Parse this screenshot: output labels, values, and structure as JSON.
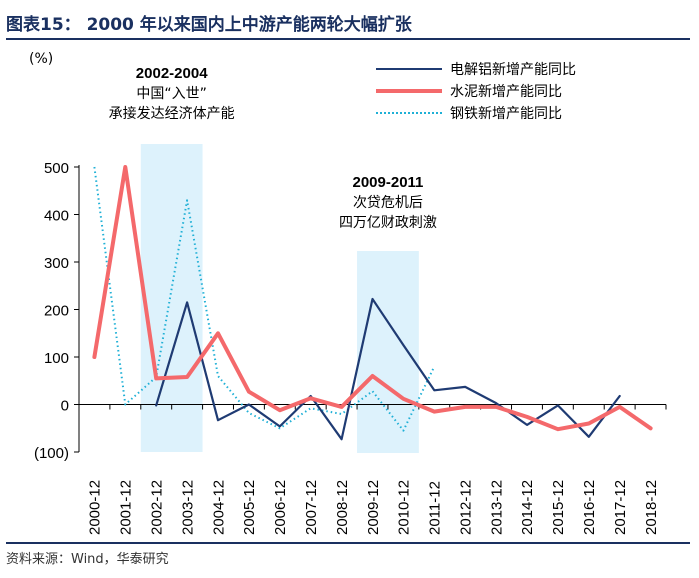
{
  "figure": {
    "title": "图表15：  2000 年以来国内上中游产能两轮大幅扩张",
    "source": "资料来源：Wind，华泰研究"
  },
  "chart_data": {
    "type": "line",
    "unit_label": "(%)",
    "categories": [
      "2000-12",
      "2001-12",
      "2002-12",
      "2003-12",
      "2004-12",
      "2005-12",
      "2006-12",
      "2007-12",
      "2008-12",
      "2009-12",
      "2010-12",
      "2011-12",
      "2012-12",
      "2013-12",
      "2014-12",
      "2015-12",
      "2016-12",
      "2017-12",
      "2018-12"
    ],
    "ylim": [
      -100,
      500
    ],
    "yticks": [
      500,
      400,
      300,
      200,
      100,
      0,
      -100
    ],
    "ytick_labels": [
      "500",
      "400",
      "300",
      "200",
      "100",
      "0",
      "(100)"
    ],
    "grid": false,
    "legend_position": "top-right",
    "series": [
      {
        "name": "电解铝新增产能同比",
        "color": "#1f3b73",
        "style": "solid",
        "values": [
          null,
          null,
          -2,
          215,
          -33,
          0,
          -46,
          18,
          -73,
          222,
          125,
          30,
          37,
          3,
          -43,
          -2,
          -68,
          18,
          null
        ]
      },
      {
        "name": "水泥新增产能同比",
        "color": "#f4696b",
        "style": "solid",
        "values": [
          100,
          500,
          55,
          58,
          150,
          27,
          -12,
          13,
          -5,
          60,
          12,
          -15,
          -5,
          -5,
          -26,
          -52,
          -40,
          -5,
          -50
        ]
      },
      {
        "name": "钢铁新增产能同比",
        "color": "#1fb0d6",
        "style": "dotted",
        "values": [
          500,
          0,
          58,
          430,
          60,
          -18,
          -50,
          -8,
          -20,
          28,
          -55,
          80,
          null,
          null,
          null,
          null,
          null,
          null,
          null
        ]
      }
    ],
    "shaded_periods": [
      {
        "range": "2002-2004",
        "from": 1.5,
        "to": 3.5,
        "color": "#ddf2fc",
        "notes": [
          "中国“入世”",
          "承接发达经济体产能"
        ]
      },
      {
        "range": "2009-2011",
        "from": 8.5,
        "to": 10.5,
        "color": "#ddf2fc",
        "notes": [
          "次贷危机后",
          "四万亿财政刺激"
        ]
      }
    ]
  }
}
